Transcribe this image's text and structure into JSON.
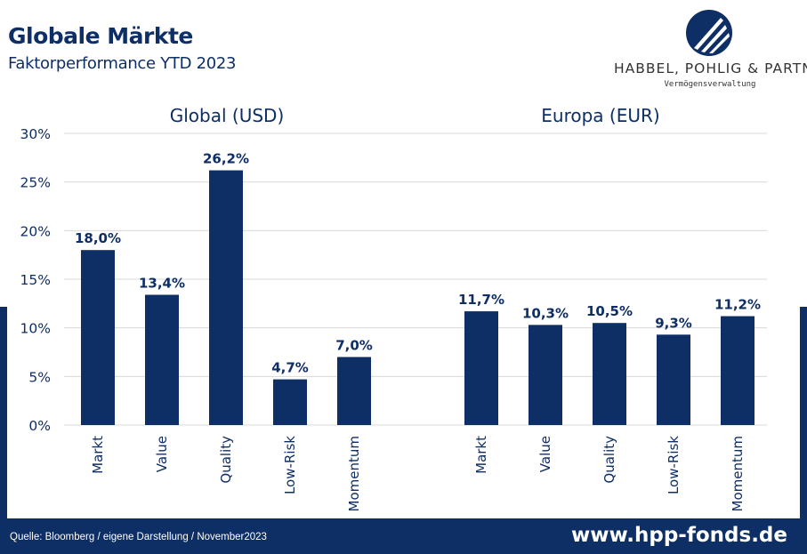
{
  "header": {
    "title": "Globale Märkte",
    "subtitle": "Faktorperformance YTD 2023"
  },
  "logo": {
    "name": "HABBEL, POHLIG & PARTNER",
    "tagline": "Vermögensverwaltung",
    "icon": "hpp-logo-icon"
  },
  "footer": {
    "source": "Quelle: Bloomberg / eigene Darstellung / November2023",
    "url": "www.hpp-fonds.de"
  },
  "colors": {
    "bar": "#0e2e66",
    "band": "#0e2e66",
    "text": "#0e2e66",
    "grid": "#d9d9d9"
  },
  "chart_data": {
    "type": "bar",
    "ylim": [
      0,
      30
    ],
    "yticks": [
      "0%",
      "5%",
      "10%",
      "15%",
      "20%",
      "25%",
      "30%"
    ],
    "grid": true,
    "groups": [
      {
        "title": "Global (USD)",
        "categories": [
          "Markt",
          "Value",
          "Quality",
          "Low-Risk",
          "Momentum"
        ],
        "values": [
          18.0,
          13.4,
          26.2,
          4.7,
          7.0
        ],
        "labels": [
          "18,0%",
          "13,4%",
          "26,2%",
          "4,7%",
          "7,0%"
        ]
      },
      {
        "title": "Europa (EUR)",
        "categories": [
          "Markt",
          "Value",
          "Quality",
          "Low-Risk",
          "Momentum"
        ],
        "values": [
          11.7,
          10.3,
          10.5,
          9.3,
          11.2
        ],
        "labels": [
          "11,7%",
          "10,3%",
          "10,5%",
          "9,3%",
          "11,2%"
        ]
      }
    ]
  }
}
